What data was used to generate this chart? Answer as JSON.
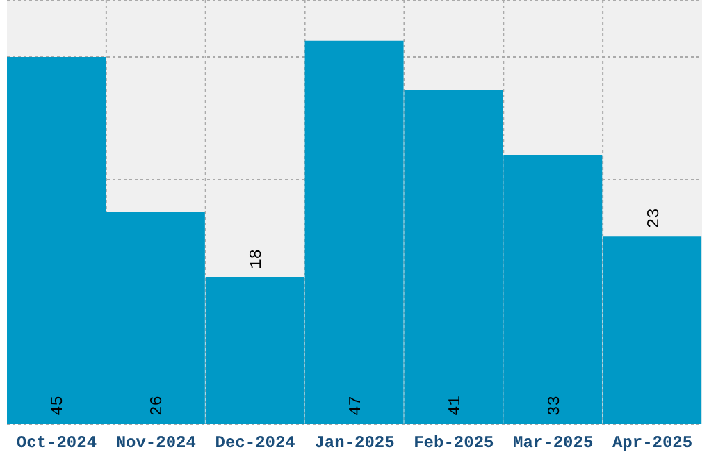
{
  "chart_data": {
    "type": "bar",
    "categories": [
      "Oct-2024",
      "Nov-2024",
      "Dec-2024",
      "Jan-2025",
      "Feb-2025",
      "Mar-2025",
      "Apr-2025"
    ],
    "values": [
      45,
      26,
      18,
      47,
      41,
      33,
      23
    ],
    "color": "#0099c6",
    "ylim": [
      0,
      52
    ],
    "grid": true,
    "data_labels": true,
    "tick_labels": "x"
  }
}
